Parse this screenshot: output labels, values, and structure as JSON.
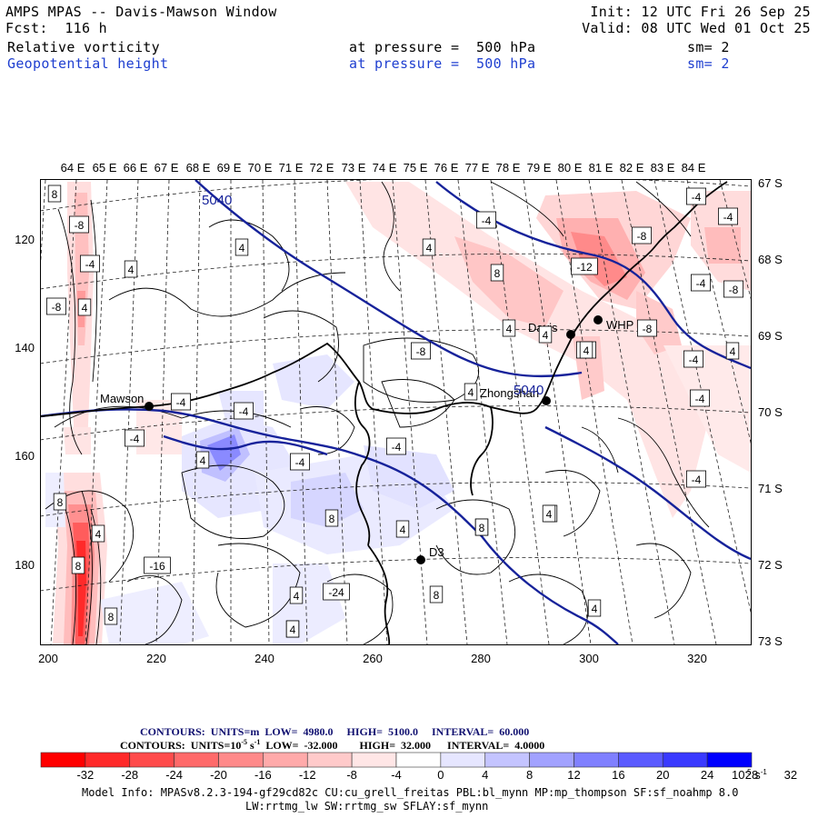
{
  "header": {
    "title": "AMPS MPAS -- Davis-Mawson Window",
    "forecast": "Fcst:  116 h",
    "init": "Init: 12 UTC Fri 26 Sep 25",
    "valid": "Valid: 08 UTC Wed 01 Oct 25",
    "field1": {
      "name": "Relative vorticity",
      "pressure": "at pressure =  500 hPa",
      "sm": "sm= 2"
    },
    "field2": {
      "name": "Geopotential height",
      "pressure": "at pressure =  500 hPa",
      "sm": "sm= 2"
    }
  },
  "axes": {
    "top_labels": [
      "64 E",
      "65 E",
      "66 E",
      "67 E",
      "68 E",
      "69 E",
      "70 E",
      "71 E",
      "72 E",
      "73 E",
      "74 E",
      "75 E",
      "76 E",
      "77 E",
      "78 E",
      "79 E",
      "80 E",
      "81 E",
      "82 E",
      "83 E",
      "84 E"
    ],
    "right_labels": [
      "67 S",
      "68 S",
      "69 S",
      "70 S",
      "71 S",
      "72 S",
      "73 S"
    ],
    "left_labels": [
      "120",
      "140",
      "160",
      "180"
    ],
    "bottom_labels": [
      "200",
      "220",
      "240",
      "260",
      "280",
      "300",
      "320"
    ]
  },
  "stations": [
    {
      "name": "Mawson"
    },
    {
      "name": "Davis"
    },
    {
      "name": "WHP"
    },
    {
      "name": "Zhongshan"
    },
    {
      "name": "D3"
    }
  ],
  "contour_labels": {
    "height": [
      "5040",
      "5040"
    ],
    "vorticity": [
      "8",
      "-8",
      "-4",
      "4",
      "4",
      "-8",
      "4",
      "4",
      "-4",
      "8",
      "4",
      "-4",
      "-8",
      "-4",
      "-4",
      "-4",
      "-8",
      "-12",
      "-8",
      "-4",
      "4",
      "-4",
      "-4",
      "-8",
      "-4",
      "-4",
      "-4",
      "4",
      "-4",
      "-4",
      "8",
      "8",
      "4",
      "8",
      "8",
      "4",
      "8",
      "-16",
      "-24",
      "4",
      "8",
      "4",
      "8",
      "4",
      "4",
      "4",
      "4",
      "8",
      "4",
      "4"
    ]
  },
  "legend": {
    "line1": {
      "contours": "CONTOURS:",
      "units": "UNITS=m",
      "low": "LOW=  4980.0",
      "high": "HIGH=  5100.0",
      "interval": "INTERVAL=  60.000"
    },
    "line2": {
      "contours": "CONTOURS:",
      "units": "UNITS=10",
      "units_exp": "-5",
      "units_s": "s",
      "units_sexp": "-1",
      "low": "LOW=  -32.000",
      "high": "HIGH=  32.000",
      "interval": "INTERVAL=  4.0000"
    },
    "scale_labels": [
      "-32",
      "-28",
      "-24",
      "-20",
      "-16",
      "-12",
      "-8",
      "-4",
      "0",
      "4",
      "8",
      "12",
      "16",
      "20",
      "24",
      "28",
      "32"
    ],
    "scale_unit": "10",
    "scale_unit_exp": "-5",
    "scale_unit_s": "s",
    "scale_unit_sexp": "-1",
    "colors": [
      "#ff0000",
      "#ff2a2a",
      "#ff4b4b",
      "#ff6a6a",
      "#ff8a8a",
      "#ffaaaa",
      "#ffcaca",
      "#ffe6e6",
      "#ffffff",
      "#ffffff",
      "#e6e6ff",
      "#c4c4ff",
      "#a2a2ff",
      "#8080ff",
      "#5b5bff",
      "#3a3aff",
      "#0000ff"
    ]
  },
  "model_info": {
    "line1": "Model Info: MPASv8.2.3-194-gf29cd82c CU:cu_grell_freitas PBL:bl_mynn MP:mp_thompson SF:sf_noahmp 8.0",
    "line2": "LW:rrtmg_lw SW:rrtmg_sw SFLAY:sf_mynn"
  }
}
